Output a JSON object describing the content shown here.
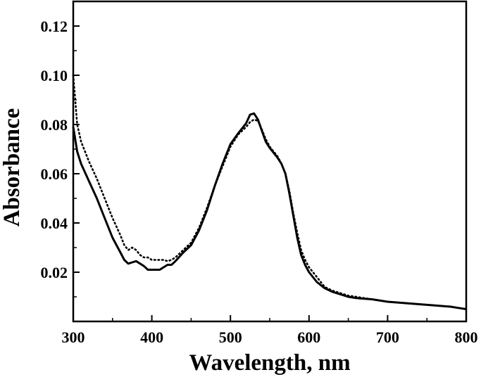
{
  "chart_data": {
    "type": "line",
    "title": "",
    "xlabel": "Wavelength, nm",
    "ylabel": "Absorbance",
    "xlim": [
      300,
      800
    ],
    "ylim": [
      0,
      0.13
    ],
    "x_ticks": [
      300,
      400,
      500,
      600,
      700,
      800
    ],
    "y_ticks": [
      0.02,
      0.04,
      0.06,
      0.08,
      0.1,
      0.12
    ],
    "x_tick_labels": [
      "300",
      "400",
      "500",
      "600",
      "700",
      "800"
    ],
    "y_tick_labels": [
      "0.02",
      "0.04",
      "0.06",
      "0.08",
      "0.10",
      "0.12"
    ],
    "grid": false,
    "legend": "none",
    "series": [
      {
        "style": "solid",
        "color": "#000000",
        "x": [
          300,
          305,
          310,
          320,
          330,
          340,
          350,
          360,
          365,
          370,
          375,
          380,
          385,
          390,
          395,
          400,
          405,
          410,
          415,
          420,
          425,
          430,
          440,
          450,
          460,
          470,
          480,
          490,
          500,
          510,
          520,
          525,
          530,
          535,
          540,
          545,
          550,
          555,
          560,
          565,
          570,
          575,
          580,
          585,
          590,
          595,
          600,
          610,
          620,
          630,
          640,
          650,
          660,
          680,
          700,
          720,
          740,
          760,
          780,
          790,
          800
        ],
        "y": [
          0.079,
          0.069,
          0.064,
          0.057,
          0.05,
          0.042,
          0.034,
          0.028,
          0.025,
          0.0235,
          0.024,
          0.0245,
          0.0235,
          0.0225,
          0.021,
          0.021,
          0.021,
          0.021,
          0.022,
          0.023,
          0.023,
          0.0245,
          0.028,
          0.031,
          0.037,
          0.045,
          0.055,
          0.064,
          0.072,
          0.0765,
          0.0805,
          0.084,
          0.0845,
          0.082,
          0.0775,
          0.073,
          0.0705,
          0.0685,
          0.0665,
          0.064,
          0.06,
          0.052,
          0.043,
          0.034,
          0.027,
          0.023,
          0.02,
          0.016,
          0.0135,
          0.012,
          0.011,
          0.01,
          0.0095,
          0.009,
          0.008,
          0.0075,
          0.007,
          0.0065,
          0.006,
          0.0055,
          0.005
        ]
      },
      {
        "style": "dotted",
        "color": "#000000",
        "x": [
          300,
          305,
          310,
          320,
          330,
          340,
          350,
          360,
          365,
          370,
          375,
          380,
          385,
          390,
          395,
          400,
          405,
          410,
          415,
          420,
          425,
          430,
          440,
          450,
          460,
          470,
          480,
          490,
          500,
          510,
          520,
          525,
          530,
          535,
          540,
          545,
          550,
          555,
          560,
          565,
          570,
          575,
          580,
          585,
          590,
          595,
          600,
          610,
          620,
          630,
          640,
          650,
          660,
          680,
          700,
          720,
          740,
          760,
          780,
          790,
          800
        ],
        "y": [
          0.1,
          0.08,
          0.073,
          0.065,
          0.058,
          0.05,
          0.042,
          0.035,
          0.031,
          0.029,
          0.03,
          0.029,
          0.027,
          0.026,
          0.026,
          0.025,
          0.025,
          0.025,
          0.025,
          0.0245,
          0.025,
          0.026,
          0.029,
          0.032,
          0.038,
          0.046,
          0.055,
          0.063,
          0.071,
          0.076,
          0.079,
          0.081,
          0.082,
          0.0815,
          0.078,
          0.074,
          0.071,
          0.069,
          0.067,
          0.064,
          0.06,
          0.053,
          0.044,
          0.036,
          0.029,
          0.025,
          0.022,
          0.018,
          0.014,
          0.0125,
          0.0115,
          0.0105,
          0.01,
          0.009,
          0.008,
          0.0075,
          0.007,
          0.0065,
          0.006,
          0.0055,
          0.005
        ]
      }
    ]
  }
}
